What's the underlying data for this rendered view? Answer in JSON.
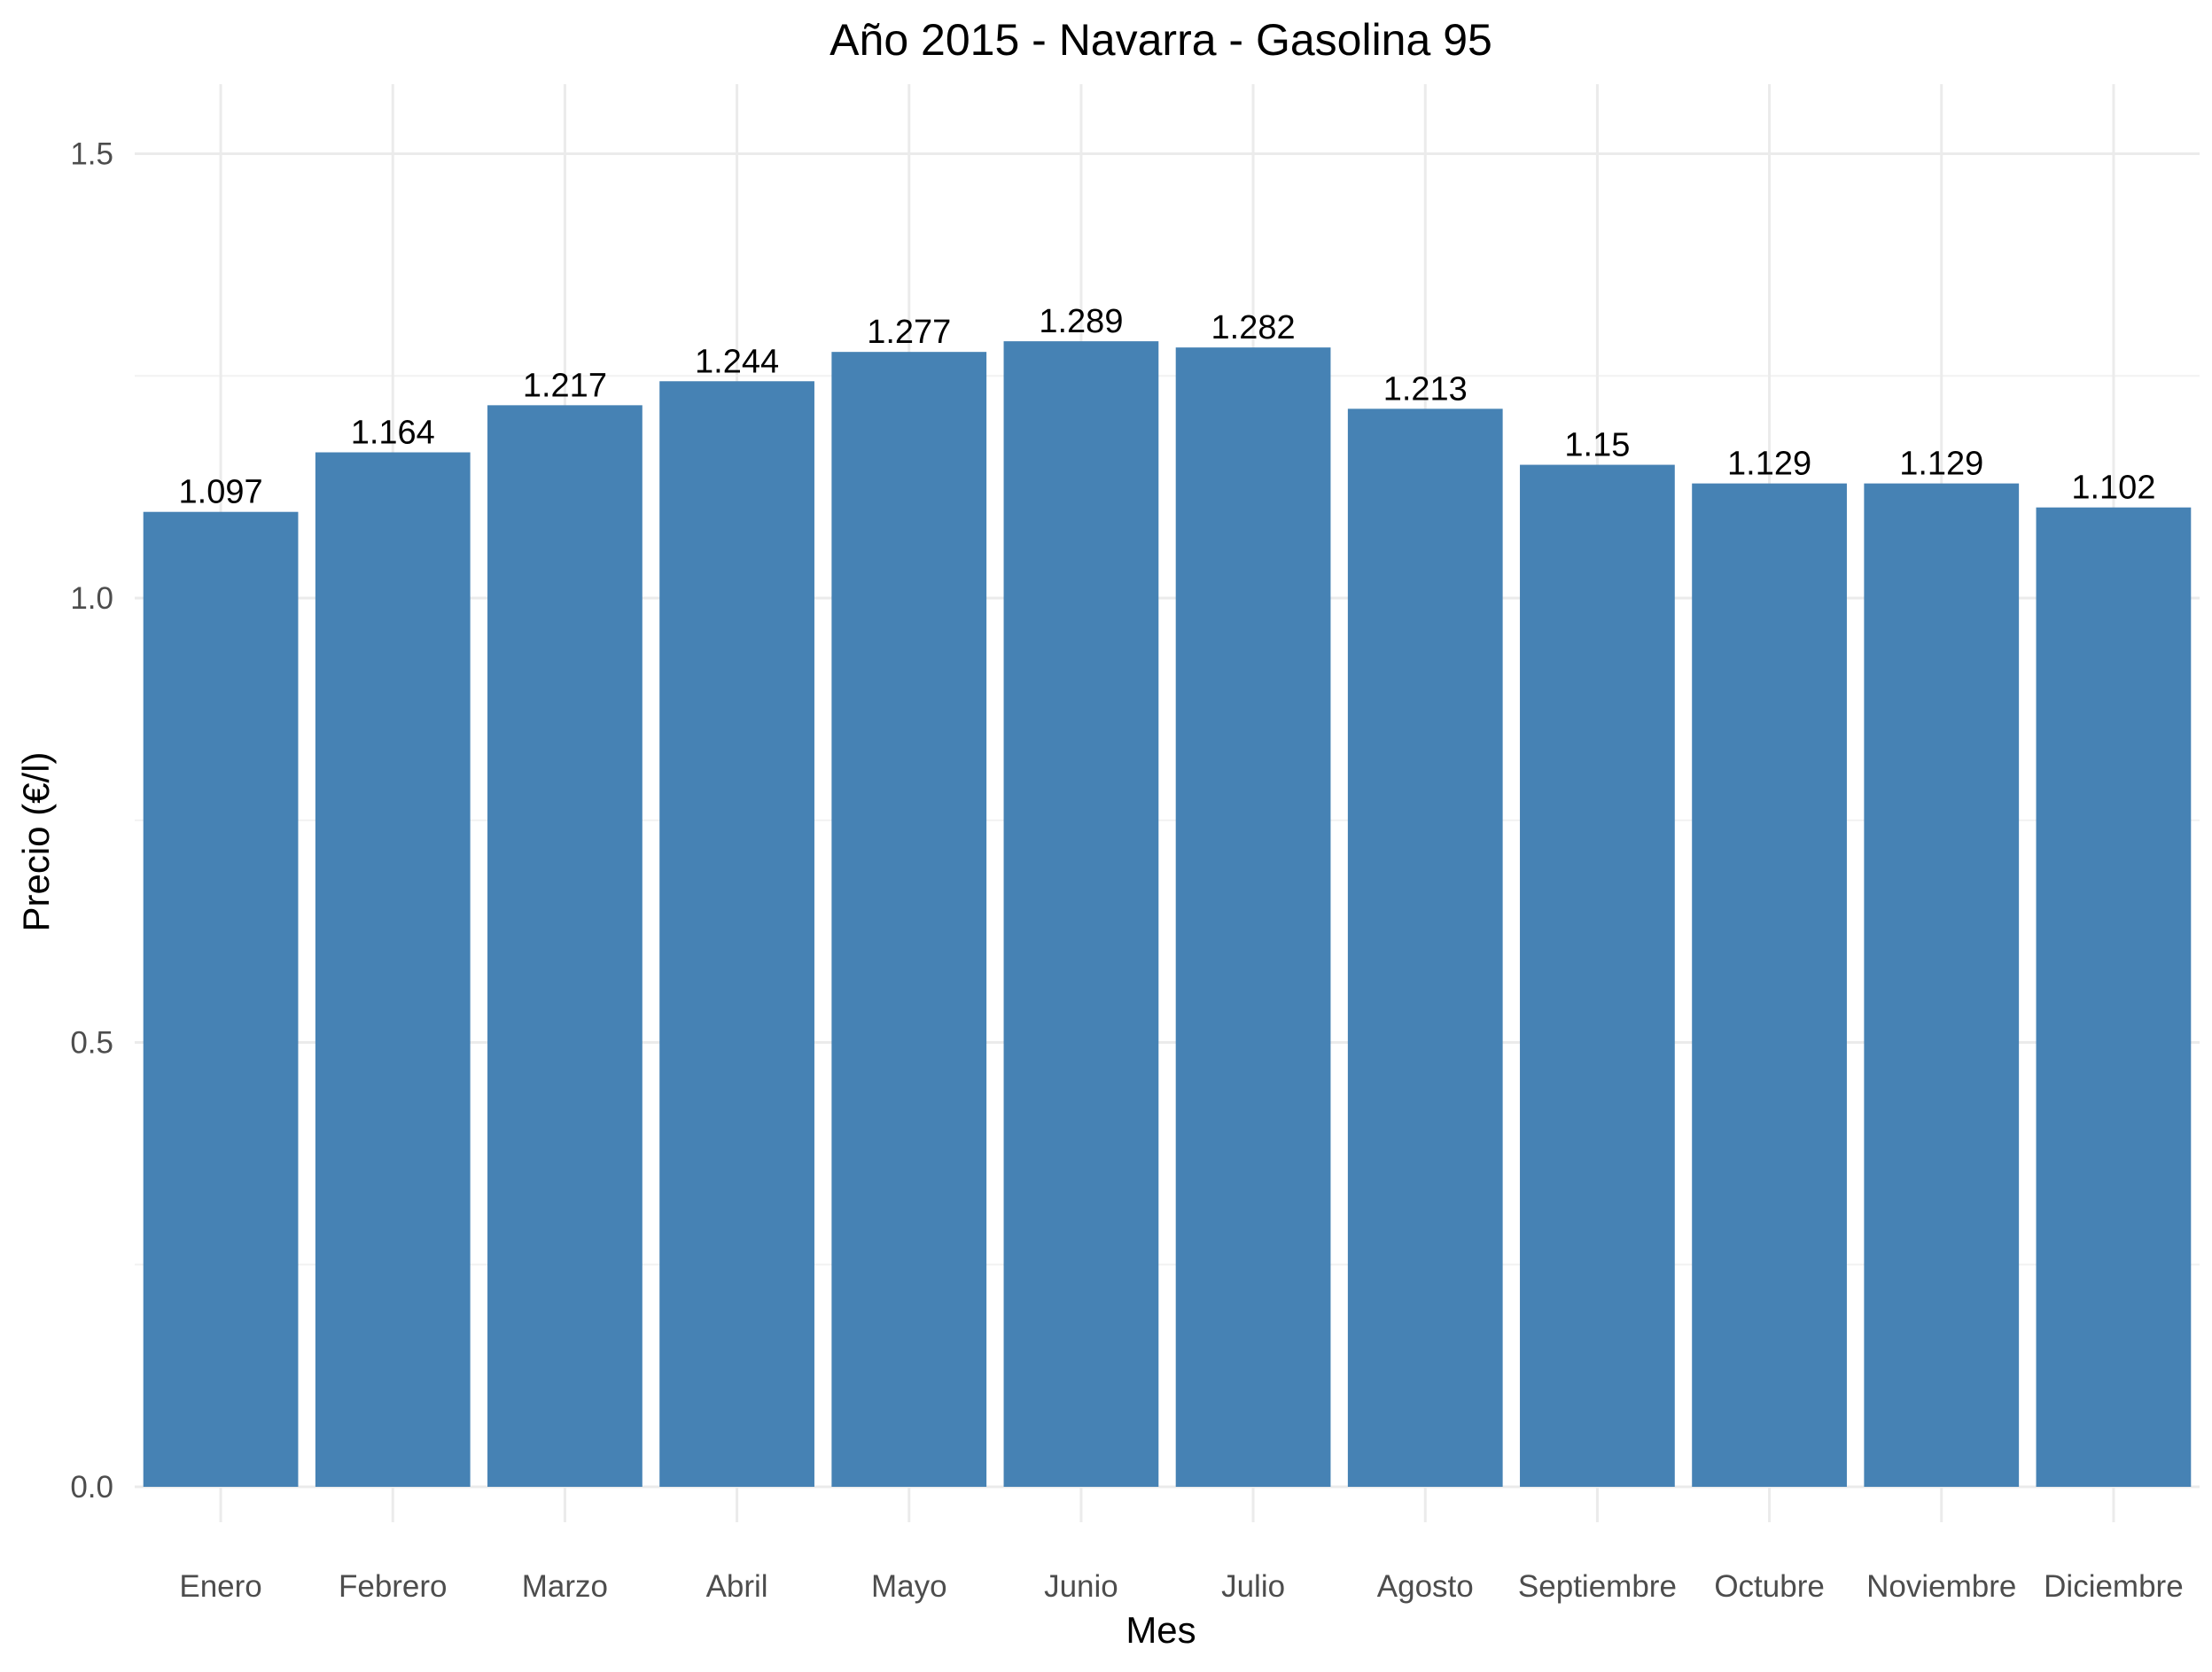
{
  "chart_data": {
    "type": "bar",
    "title": "Año 2015 - Navarra - Gasolina 95",
    "xlabel": "Mes",
    "ylabel": "Precio (€/l)",
    "categories": [
      "Enero",
      "Febrero",
      "Marzo",
      "Abril",
      "Mayo",
      "Junio",
      "Julio",
      "Agosto",
      "Septiembre",
      "Octubre",
      "Noviembre",
      "Diciembre"
    ],
    "values": [
      1.097,
      1.164,
      1.217,
      1.244,
      1.277,
      1.289,
      1.282,
      1.213,
      1.15,
      1.129,
      1.129,
      1.102
    ],
    "value_labels": [
      "1.097",
      "1.164",
      "1.217",
      "1.244",
      "1.277",
      "1.289",
      "1.282",
      "1.213",
      "1.15",
      "1.129",
      "1.129",
      "1.102"
    ],
    "y_ticks": [
      0.0,
      0.5,
      1.0,
      1.5
    ],
    "y_tick_labels": [
      "0.0",
      "0.5",
      "1.0",
      "1.5"
    ],
    "y_minor_ticks": [
      0.25,
      0.75,
      1.25
    ],
    "ylim": [
      0,
      1.575
    ],
    "grid": true,
    "legend": "none",
    "bar_color": "#4682b4"
  }
}
